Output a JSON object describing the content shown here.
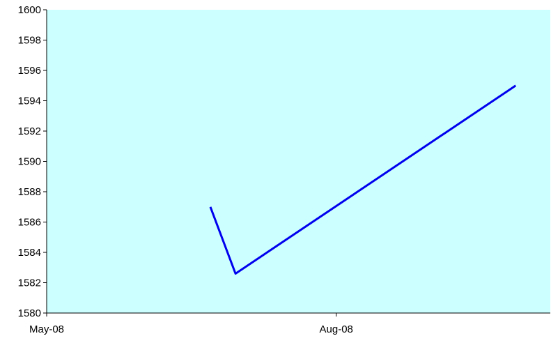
{
  "chart_data": {
    "type": "line",
    "title": "",
    "xlabel": "",
    "ylabel": "",
    "ylim": [
      1580,
      1600
    ],
    "yticks": [
      1580,
      1582,
      1584,
      1586,
      1588,
      1590,
      1592,
      1594,
      1596,
      1598,
      1600
    ],
    "xlim": [
      "2008-05-01",
      "2008-10-08"
    ],
    "xticks": [
      {
        "date": "2008-05-01",
        "label": "May-08"
      },
      {
        "date": "2008-08-01",
        "label": "Aug-08"
      }
    ],
    "grid": false,
    "legend": "none",
    "series": [
      {
        "color": "#0000ee",
        "points": [
          {
            "x": "2008-06-22",
            "y": 1587.0
          },
          {
            "x": "2008-06-30",
            "y": 1582.6
          },
          {
            "x": "2008-09-27",
            "y": 1595.0
          }
        ]
      }
    ],
    "colors": {
      "plot_background": "#ccffff",
      "axis": "#000000"
    }
  }
}
